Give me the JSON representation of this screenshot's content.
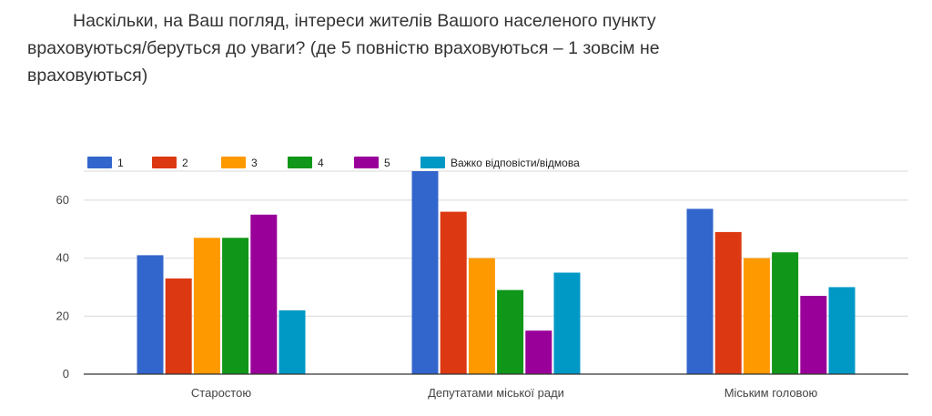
{
  "question": {
    "text": "Наскільки, на Ваш погляд, інтереси жителів Вашого населеного пункту враховуються/беруться до уваги? (де 5 повністю враховуються – 1 зовсім не враховуються)"
  },
  "chart_data": {
    "type": "bar",
    "title": "",
    "xlabel": "",
    "ylabel": "",
    "ylim": [
      0,
      70
    ],
    "yticks": [
      0,
      20,
      40,
      60
    ],
    "grid": true,
    "legend_position": "top-left",
    "categories": [
      "Старостою",
      "Депутатами міської ради",
      "Міським головою"
    ],
    "series": [
      {
        "name": "1",
        "color": "#3366cc",
        "values": [
          41,
          70,
          57
        ]
      },
      {
        "name": "2",
        "color": "#dc3912",
        "values": [
          33,
          56,
          49
        ]
      },
      {
        "name": "3",
        "color": "#ff9900",
        "values": [
          47,
          40,
          40
        ]
      },
      {
        "name": "4",
        "color": "#109618",
        "values": [
          47,
          29,
          42
        ]
      },
      {
        "name": "5",
        "color": "#990099",
        "values": [
          55,
          15,
          27
        ]
      },
      {
        "name": "Важко відповісти/відмова",
        "color": "#0099c6",
        "values": [
          22,
          35,
          30
        ]
      }
    ]
  }
}
